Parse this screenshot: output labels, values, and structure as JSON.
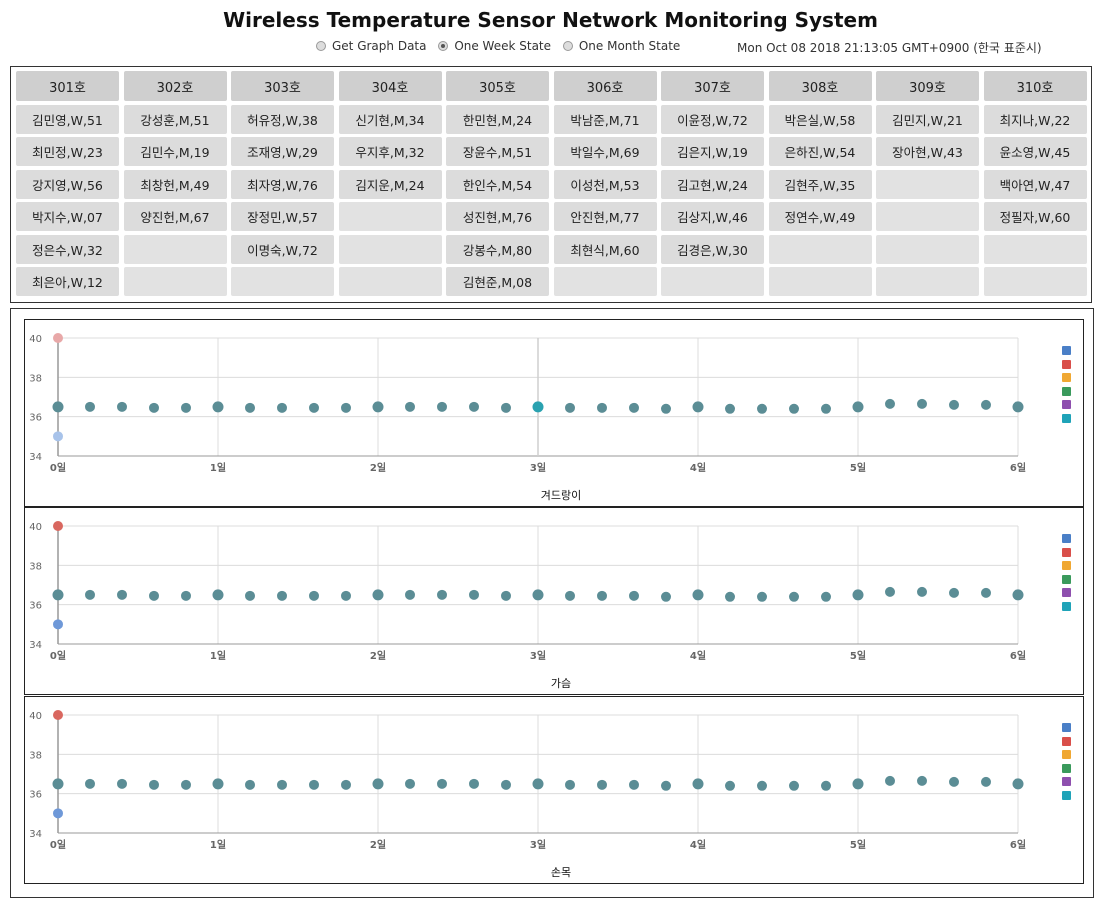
{
  "header": {
    "title": "Wireless Temperature Sensor Network Monitoring System",
    "options": [
      {
        "label": "Get Graph Data",
        "selected": false
      },
      {
        "label": "One Week State",
        "selected": true
      },
      {
        "label": "One Month State",
        "selected": false
      }
    ],
    "timestamp": "Mon Oct 08 2018 21:13:05 GMT+0900 (한국 표준시)"
  },
  "rooms": [
    {
      "name": "301호",
      "patients": [
        "김민영,W,51",
        "최민정,W,23",
        "강지영,W,56",
        "박지수,W,07",
        "정은수,W,32",
        "최은아,W,12"
      ]
    },
    {
      "name": "302호",
      "patients": [
        "강성훈,M,51",
        "김민수,M,19",
        "최창헌,M,49",
        "양진헌,M,67",
        "",
        ""
      ]
    },
    {
      "name": "303호",
      "patients": [
        "허유정,W,38",
        "조재영,W,29",
        "최자영,W,76",
        "장정민,W,57",
        "이명숙,W,72",
        ""
      ]
    },
    {
      "name": "304호",
      "patients": [
        "신기현,M,34",
        "우지후,M,32",
        "김지운,M,24",
        "",
        "",
        ""
      ]
    },
    {
      "name": "305호",
      "patients": [
        "한민현,M,24",
        "장윤수,M,51",
        "한인수,M,54",
        "성진현,M,76",
        "강봉수,M,80",
        "김현준,M,08"
      ]
    },
    {
      "name": "306호",
      "patients": [
        "박남준,M,71",
        "박일수,M,69",
        "이성천,M,53",
        "안진현,M,77",
        "최현식,M,60",
        ""
      ]
    },
    {
      "name": "307호",
      "patients": [
        "이윤정,W,72",
        "김은지,W,19",
        "김고현,W,24",
        "김상지,W,46",
        "김경은,W,30",
        ""
      ]
    },
    {
      "name": "308호",
      "patients": [
        "박은실,W,58",
        "은하진,W,54",
        "김현주,W,35",
        "정연수,W,49",
        "",
        ""
      ]
    },
    {
      "name": "309호",
      "patients": [
        "김민지,W,21",
        "장아현,W,43",
        "",
        "",
        "",
        ""
      ]
    },
    {
      "name": "310호",
      "patients": [
        "최지나,W,22",
        "윤소영,W,45",
        "백아연,W,47",
        "정필자,W,60",
        "",
        ""
      ]
    }
  ],
  "legend_colors": [
    "#4a7fc7",
    "#d94f4a",
    "#f0a833",
    "#3a9a5c",
    "#8e4fae",
    "#1fa3b8"
  ],
  "chart_data": [
    {
      "type": "scatter",
      "xlabel": "겨드랑이",
      "xlim": [
        0,
        6
      ],
      "ylim": [
        34,
        40
      ],
      "xticks": [
        0,
        1,
        2,
        3,
        4,
        5,
        6
      ],
      "xtick_labels": [
        "0일",
        "1일",
        "2일",
        "3일",
        "4일",
        "5일",
        "6일"
      ],
      "yticks": [
        34,
        36,
        38,
        40
      ],
      "grid": true,
      "highlight_x": 3,
      "outliers": [
        {
          "x": 0,
          "y": 40,
          "color": "#e8a8a8"
        },
        {
          "x": 0,
          "y": 35,
          "color": "#a8c3ea"
        }
      ],
      "points": {
        "color": "#5b8d95",
        "x": [
          0,
          0.2,
          0.4,
          0.6,
          0.8,
          1,
          1.2,
          1.4,
          1.6,
          1.8,
          2,
          2.2,
          2.4,
          2.6,
          2.8,
          3,
          3.2,
          3.4,
          3.6,
          3.8,
          4,
          4.2,
          4.4,
          4.6,
          4.8,
          5,
          5.2,
          5.4,
          5.6,
          5.8,
          6
        ],
        "y": [
          36.5,
          36.5,
          36.5,
          36.45,
          36.45,
          36.5,
          36.45,
          36.45,
          36.45,
          36.45,
          36.5,
          36.5,
          36.5,
          36.5,
          36.45,
          36.5,
          36.45,
          36.45,
          36.45,
          36.4,
          36.5,
          36.4,
          36.4,
          36.4,
          36.4,
          36.5,
          36.65,
          36.65,
          36.6,
          36.6,
          36.5
        ]
      }
    },
    {
      "type": "scatter",
      "xlabel": "가슴",
      "xlim": [
        0,
        6
      ],
      "ylim": [
        34,
        40
      ],
      "xticks": [
        0,
        1,
        2,
        3,
        4,
        5,
        6
      ],
      "xtick_labels": [
        "0일",
        "1일",
        "2일",
        "3일",
        "4일",
        "5일",
        "6일"
      ],
      "yticks": [
        34,
        36,
        38,
        40
      ],
      "grid": true,
      "outliers": [
        {
          "x": 0,
          "y": 40,
          "color": "#d9675f"
        },
        {
          "x": 0,
          "y": 35,
          "color": "#6e98d8"
        }
      ],
      "points": {
        "color": "#5b8d95",
        "x": [
          0,
          0.2,
          0.4,
          0.6,
          0.8,
          1,
          1.2,
          1.4,
          1.6,
          1.8,
          2,
          2.2,
          2.4,
          2.6,
          2.8,
          3,
          3.2,
          3.4,
          3.6,
          3.8,
          4,
          4.2,
          4.4,
          4.6,
          4.8,
          5,
          5.2,
          5.4,
          5.6,
          5.8,
          6
        ],
        "y": [
          36.5,
          36.5,
          36.5,
          36.45,
          36.45,
          36.5,
          36.45,
          36.45,
          36.45,
          36.45,
          36.5,
          36.5,
          36.5,
          36.5,
          36.45,
          36.5,
          36.45,
          36.45,
          36.45,
          36.4,
          36.5,
          36.4,
          36.4,
          36.4,
          36.4,
          36.5,
          36.65,
          36.65,
          36.6,
          36.6,
          36.5
        ]
      }
    },
    {
      "type": "scatter",
      "xlabel": "손목",
      "xlim": [
        0,
        6
      ],
      "ylim": [
        34,
        40
      ],
      "xticks": [
        0,
        1,
        2,
        3,
        4,
        5,
        6
      ],
      "xtick_labels": [
        "0일",
        "1일",
        "2일",
        "3일",
        "4일",
        "5일",
        "6일"
      ],
      "yticks": [
        34,
        36,
        38,
        40
      ],
      "grid": true,
      "outliers": [
        {
          "x": 0,
          "y": 40,
          "color": "#d9675f"
        },
        {
          "x": 0,
          "y": 35,
          "color": "#6e98d8"
        }
      ],
      "points": {
        "color": "#5b8d95",
        "x": [
          0,
          0.2,
          0.4,
          0.6,
          0.8,
          1,
          1.2,
          1.4,
          1.6,
          1.8,
          2,
          2.2,
          2.4,
          2.6,
          2.8,
          3,
          3.2,
          3.4,
          3.6,
          3.8,
          4,
          4.2,
          4.4,
          4.6,
          4.8,
          5,
          5.2,
          5.4,
          5.6,
          5.8,
          6
        ],
        "y": [
          36.5,
          36.5,
          36.5,
          36.45,
          36.45,
          36.5,
          36.45,
          36.45,
          36.45,
          36.45,
          36.5,
          36.5,
          36.5,
          36.5,
          36.45,
          36.5,
          36.45,
          36.45,
          36.45,
          36.4,
          36.5,
          36.4,
          36.4,
          36.4,
          36.4,
          36.5,
          36.65,
          36.65,
          36.6,
          36.6,
          36.5
        ]
      }
    }
  ]
}
